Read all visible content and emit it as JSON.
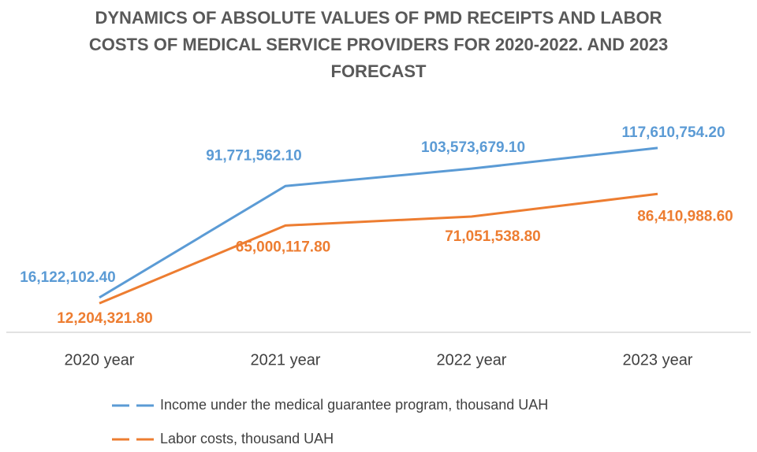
{
  "chart_data": {
    "type": "line",
    "title": "DYNAMICS OF ABSOLUTE VALUES OF PMD RECEIPTS AND LABOR COSTS OF MEDICAL SERVICE PROVIDERS FOR 2020-2022. AND 2023 FORECAST",
    "categories": [
      "2020 year",
      "2021 year",
      "2022 year",
      "2023 year"
    ],
    "series": [
      {
        "name": "Income under the medical guarantee program, thousand UAH",
        "color": "#5b9bd5",
        "values": [
          16122102.4,
          91771562.1,
          103573679.1,
          117610754.2
        ],
        "value_labels": [
          "16,122,102.40",
          "91,771,562.10",
          "103,573,679.10",
          "117,610,754.20"
        ]
      },
      {
        "name": "Labor costs, thousand UAH",
        "color": "#ed7d31",
        "values": [
          12204321.8,
          65000117.8,
          71051538.8,
          86410988.6
        ],
        "value_labels": [
          "12,204,321.80",
          "65,000,117.80",
          "71,051,538.80",
          "86,410,988.60"
        ]
      }
    ],
    "ylim": [
      0,
      140000000
    ],
    "legend": "bottom"
  }
}
